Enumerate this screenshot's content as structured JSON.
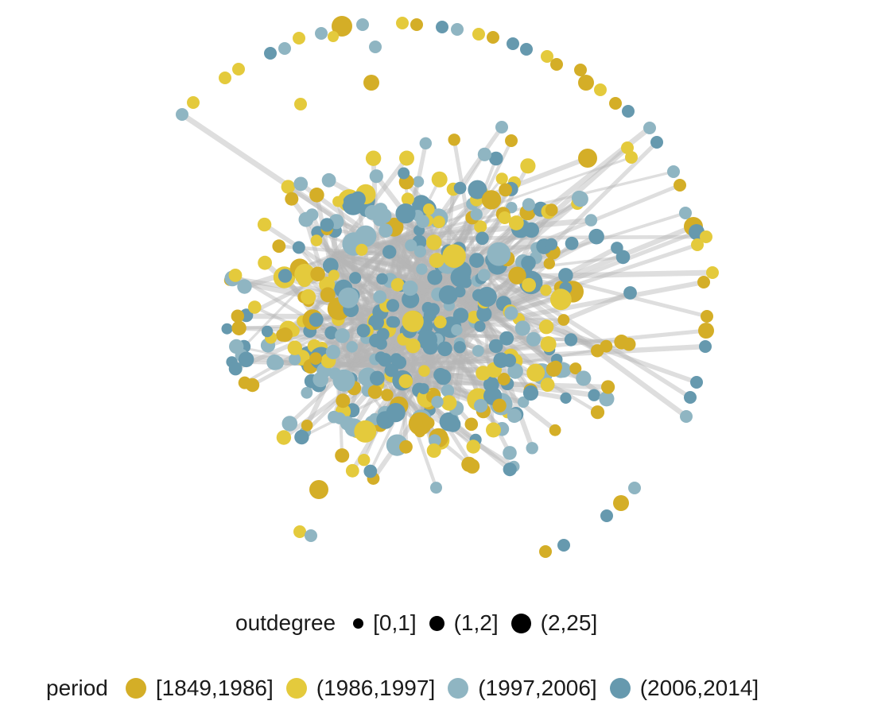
{
  "colors": {
    "edge": "#b5b5b5",
    "p1": "#D4AE27",
    "p2": "#E4CA3C",
    "p3": "#8FB5C2",
    "p4": "#6699AE"
  },
  "legend": {
    "outdegree": {
      "title": "outdegree",
      "items": [
        {
          "label": "[0,1]",
          "size": "small"
        },
        {
          "label": "(1,2]",
          "size": "medium"
        },
        {
          "label": "(2,25]",
          "size": "large"
        }
      ]
    },
    "period": {
      "title": "period",
      "items": [
        {
          "label": "[1849,1986]",
          "color_key": "p1"
        },
        {
          "label": "(1986,1997]",
          "color_key": "p2"
        },
        {
          "label": "(1997,2006]",
          "color_key": "p3"
        },
        {
          "label": "(2006,2014]",
          "color_key": "p4"
        }
      ]
    }
  }
}
